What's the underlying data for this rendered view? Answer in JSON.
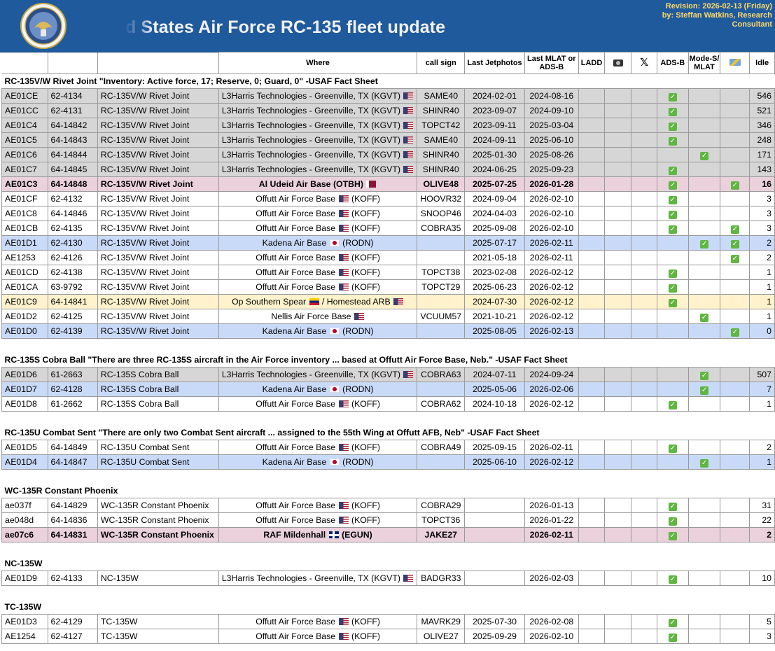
{
  "header": {
    "title": "ed States Air Force RC-135 fleet update",
    "revision_line1": "Revision: 2026-02-13 (Friday)",
    "revision_line2": "by: Steffan Watkins, Research",
    "revision_line3": "Consultant"
  },
  "columns": {
    "where": "Where",
    "callsign": "call sign",
    "jetphotos": "Last Jetphotos",
    "mlat_l1": "Last MLAT or",
    "mlat_l2": "ADS-B",
    "ladd": "LADD",
    "camera_icon": "camera-icon",
    "x_icon": "𝕏",
    "adsb": "ADS-B",
    "modes_l1": "Mode-S/",
    "modes_l2": "MLAT",
    "sat_icon": "satellite-icon",
    "idle": "Idle"
  },
  "sections": [
    {
      "title": "RC-135V/W Rivet Joint \"Inventory: Active force, 17; Reserve, 0; Guard, 0\" -USAF Fact Sheet",
      "rows": [
        {
          "hex": "AE01CE",
          "serial": "62-4134",
          "type": "RC-135V/W Rivet Joint",
          "where": "L3Harris Technologies - Greenville, TX (KGVT)",
          "flag": "us",
          "align": "left",
          "callsign": "SAME40",
          "jet": "2024-02-01",
          "mlat": "2024-08-16",
          "adsb": true,
          "modes": false,
          "sat": false,
          "idle": "546",
          "style": "gray"
        },
        {
          "hex": "AE01CC",
          "serial": "62-4131",
          "type": "RC-135V/W Rivet Joint",
          "where": "L3Harris Technologies - Greenville, TX (KGVT)",
          "flag": "us",
          "align": "left",
          "callsign": "SHINR40",
          "jet": "2023-09-07",
          "mlat": "2024-09-10",
          "adsb": true,
          "modes": false,
          "sat": false,
          "idle": "521",
          "style": "gray"
        },
        {
          "hex": "AE01C4",
          "serial": "64-14842",
          "type": "RC-135V/W Rivet Joint",
          "where": "L3Harris Technologies - Greenville, TX (KGVT)",
          "flag": "us",
          "align": "left",
          "callsign": "TOPCT42",
          "jet": "2023-09-11",
          "mlat": "2025-03-04",
          "adsb": true,
          "modes": false,
          "sat": false,
          "idle": "346",
          "style": "gray"
        },
        {
          "hex": "AE01C5",
          "serial": "64-14843",
          "type": "RC-135V/W Rivet Joint",
          "where": "L3Harris Technologies - Greenville, TX (KGVT)",
          "flag": "us",
          "align": "left",
          "callsign": "SAME40",
          "jet": "2024-09-11",
          "mlat": "2025-06-10",
          "adsb": true,
          "modes": false,
          "sat": false,
          "idle": "248",
          "style": "gray"
        },
        {
          "hex": "AE01C6",
          "serial": "64-14844",
          "type": "RC-135V/W Rivet Joint",
          "where": "L3Harris Technologies - Greenville, TX (KGVT)",
          "flag": "us",
          "align": "left",
          "callsign": "SHINR40",
          "jet": "2025-01-30",
          "mlat": "2025-08-26",
          "adsb": false,
          "modes": true,
          "sat": false,
          "idle": "171",
          "style": "gray"
        },
        {
          "hex": "AE01C7",
          "serial": "64-14845",
          "type": "RC-135V/W Rivet Joint",
          "where": "L3Harris Technologies - Greenville, TX (KGVT)",
          "flag": "us",
          "align": "left",
          "callsign": "SHINR40",
          "jet": "2024-06-25",
          "mlat": "2025-09-23",
          "adsb": true,
          "modes": false,
          "sat": false,
          "idle": "143",
          "style": "gray"
        },
        {
          "hex": "AE01C3",
          "serial": "64-14848",
          "type": "RC-135V/W Rivet Joint",
          "where": "Al Udeid Air Base (OTBH)",
          "flag": "qa",
          "align": "center",
          "callsign": "OLIVE48",
          "jet": "2025-07-25",
          "mlat": "2026-01-28",
          "adsb": true,
          "modes": false,
          "sat": true,
          "idle": "16",
          "style": "pink"
        },
        {
          "hex": "AE01CF",
          "serial": "62-4132",
          "type": "RC-135V/W Rivet Joint",
          "where": "Offutt Air Force Base",
          "flag": "us",
          "suffix": "(KOFF)",
          "align": "center",
          "callsign": "HOOVR32",
          "jet": "2024-09-04",
          "mlat": "2026-02-10",
          "adsb": true,
          "modes": false,
          "sat": false,
          "idle": "3",
          "style": ""
        },
        {
          "hex": "AE01C8",
          "serial": "64-14846",
          "type": "RC-135V/W Rivet Joint",
          "where": "Offutt Air Force Base",
          "flag": "us",
          "suffix": "(KOFF)",
          "align": "center",
          "callsign": "SNOOP46",
          "jet": "2024-04-03",
          "mlat": "2026-02-10",
          "adsb": true,
          "modes": false,
          "sat": false,
          "idle": "3",
          "style": ""
        },
        {
          "hex": "AE01CB",
          "serial": "62-4135",
          "type": "RC-135V/W Rivet Joint",
          "where": "Offutt Air Force Base",
          "flag": "us",
          "suffix": "(KOFF)",
          "align": "center",
          "callsign": "COBRA35",
          "jet": "2025-09-08",
          "mlat": "2026-02-10",
          "adsb": true,
          "modes": false,
          "sat": true,
          "idle": "3",
          "style": ""
        },
        {
          "hex": "AE01D1",
          "serial": "62-4130",
          "type": "RC-135V/W Rivet Joint",
          "where": "Kadena Air Base",
          "flag": "jp",
          "suffix": "(RODN)",
          "align": "center",
          "callsign": "",
          "jet": "2025-07-17",
          "mlat": "2026-02-11",
          "adsb": false,
          "modes": true,
          "sat": true,
          "idle": "2",
          "style": "blue"
        },
        {
          "hex": "AE1253",
          "serial": "62-4126",
          "type": "RC-135V/W Rivet Joint",
          "where": "Offutt Air Force Base",
          "flag": "us",
          "suffix": "(KOFF)",
          "align": "center",
          "callsign": "",
          "jet": "2021-05-18",
          "mlat": "2026-02-11",
          "adsb": false,
          "modes": false,
          "sat": true,
          "idle": "2",
          "style": ""
        },
        {
          "hex": "AE01CD",
          "serial": "62-4138",
          "type": "RC-135V/W Rivet Joint",
          "where": "Offutt Air Force Base",
          "flag": "us",
          "suffix": "(KOFF)",
          "align": "center",
          "callsign": "TOPCT38",
          "jet": "2023-02-08",
          "mlat": "2026-02-12",
          "adsb": true,
          "modes": false,
          "sat": false,
          "idle": "1",
          "style": ""
        },
        {
          "hex": "AE01CA",
          "serial": "63-9792",
          "type": "RC-135V/W Rivet Joint",
          "where": "Offutt Air Force Base",
          "flag": "us",
          "suffix": "(KOFF)",
          "align": "center",
          "callsign": "TOPCT29",
          "jet": "2025-06-23",
          "mlat": "2026-02-12",
          "adsb": true,
          "modes": false,
          "sat": false,
          "idle": "1",
          "style": ""
        },
        {
          "hex": "AE01C9",
          "serial": "64-14841",
          "type": "RC-135V/W Rivet Joint",
          "where": "Op Southern Spear",
          "flag": "ve",
          "suffix": "/ Homestead ARB",
          "flag2": "us",
          "align": "center",
          "callsign": "",
          "jet": "2024-07-30",
          "mlat": "2026-02-12",
          "adsb": true,
          "modes": false,
          "sat": false,
          "idle": "1",
          "style": "yellow"
        },
        {
          "hex": "AE01D2",
          "serial": "62-4125",
          "type": "RC-135V/W Rivet Joint",
          "where": "Nellis Air Force Base",
          "flag": "us",
          "align": "center",
          "callsign": "VCUUM57",
          "jet": "2021-10-21",
          "mlat": "2026-02-12",
          "adsb": false,
          "modes": true,
          "sat": false,
          "idle": "1",
          "style": ""
        },
        {
          "hex": "AE01D0",
          "serial": "62-4139",
          "type": "RC-135V/W Rivet Joint",
          "where": "Kadena Air Base",
          "flag": "jp",
          "suffix": "(RODN)",
          "align": "center",
          "callsign": "",
          "jet": "2025-08-05",
          "mlat": "2026-02-13",
          "adsb": false,
          "modes": false,
          "sat": true,
          "idle": "0",
          "style": "blue"
        }
      ]
    },
    {
      "title": "RC-135S Cobra Ball \"There are three RC-135S aircraft in the Air Force inventory ... based at Offutt Air Force Base, Neb.\"  -USAF Fact Sheet",
      "rows": [
        {
          "hex": "AE01D6",
          "serial": "61-2663",
          "type": "RC-135S Cobra Ball",
          "where": "L3Harris Technologies - Greenville, TX (KGVT)",
          "flag": "us",
          "align": "left",
          "callsign": "COBRA63",
          "jet": "2024-07-11",
          "mlat": "2024-09-24",
          "adsb": false,
          "modes": true,
          "sat": false,
          "idle": "507",
          "style": "gray"
        },
        {
          "hex": "AE01D7",
          "serial": "62-4128",
          "type": "RC-135S Cobra Ball",
          "where": "Kadena Air Base",
          "flag": "jp",
          "suffix": "(RODN)",
          "align": "center",
          "callsign": "",
          "jet": "2025-05-06",
          "mlat": "2026-02-06",
          "adsb": false,
          "modes": true,
          "sat": false,
          "idle": "7",
          "style": "blue"
        },
        {
          "hex": "AE01D8",
          "serial": "61-2662",
          "type": "RC-135S Cobra Ball",
          "where": "Offutt Air Force Base",
          "flag": "us",
          "suffix": "(KOFF)",
          "align": "center",
          "callsign": "COBRA62",
          "jet": "2024-10-18",
          "mlat": "2026-02-12",
          "adsb": true,
          "modes": false,
          "sat": false,
          "idle": "1",
          "style": ""
        }
      ]
    },
    {
      "title": "RC-135U Combat Sent \"There are only two Combat Sent aircraft ... assigned to the 55th Wing at Offutt AFB, Neb\"  -USAF Fact Sheet",
      "rows": [
        {
          "hex": "AE01D5",
          "serial": "64-14849",
          "type": "RC-135U Combat Sent",
          "where": "Offutt Air Force Base",
          "flag": "us",
          "suffix": "(KOFF)",
          "align": "center",
          "callsign": "COBRA49",
          "jet": "2025-09-15",
          "mlat": "2026-02-11",
          "adsb": true,
          "modes": false,
          "sat": false,
          "idle": "2",
          "style": ""
        },
        {
          "hex": "AE01D4",
          "serial": "64-14847",
          "type": "RC-135U Combat Sent",
          "where": "Kadena Air Base",
          "flag": "jp",
          "suffix": "(RODN)",
          "align": "center",
          "callsign": "",
          "jet": "2025-06-10",
          "mlat": "2026-02-12",
          "adsb": false,
          "modes": true,
          "sat": false,
          "idle": "1",
          "style": "blue"
        }
      ]
    },
    {
      "title": "WC-135R Constant Phoenix",
      "rows": [
        {
          "hex": "ae037f",
          "serial": "64-14829",
          "type": "WC-135R Constant Phoenix",
          "where": "Offutt Air Force Base",
          "flag": "us",
          "suffix": "(KOFF)",
          "align": "center",
          "callsign": "COBRA29",
          "jet": "",
          "mlat": "2026-01-13",
          "adsb": true,
          "modes": false,
          "sat": false,
          "idle": "31",
          "style": ""
        },
        {
          "hex": "ae048d",
          "serial": "64-14836",
          "type": "WC-135R Constant Phoenix",
          "where": "Offutt Air Force Base",
          "flag": "us",
          "suffix": "(KOFF)",
          "align": "center",
          "callsign": "TOPCT36",
          "jet": "",
          "mlat": "2026-01-22",
          "adsb": true,
          "modes": false,
          "sat": false,
          "idle": "22",
          "style": ""
        },
        {
          "hex": "ae07c6",
          "serial": "64-14831",
          "type": "WC-135R Constant Phoenix",
          "where": "RAF Mildenhall",
          "flag": "gb",
          "suffix": "(EGUN)",
          "align": "center",
          "callsign": "JAKE27",
          "jet": "",
          "mlat": "2026-02-11",
          "adsb": true,
          "modes": false,
          "sat": false,
          "idle": "2",
          "style": "pink"
        }
      ]
    },
    {
      "title": "NC-135W",
      "rows": [
        {
          "hex": "AE01D9",
          "serial": "62-4133",
          "type": "NC-135W",
          "where": "L3Harris Technologies - Greenville, TX (KGVT)",
          "flag": "us",
          "align": "left",
          "callsign": "BADGR33",
          "jet": "",
          "mlat": "2026-02-03",
          "adsb": true,
          "modes": false,
          "sat": false,
          "idle": "10",
          "style": ""
        }
      ]
    },
    {
      "title": "TC-135W",
      "rows": [
        {
          "hex": "AE01D3",
          "serial": "62-4129",
          "type": "TC-135W",
          "where": "Offutt Air Force Base",
          "flag": "us",
          "suffix": "(KOFF)",
          "align": "center",
          "callsign": "MAVRK29",
          "jet": "2025-07-30",
          "mlat": "2026-02-08",
          "adsb": true,
          "modes": false,
          "sat": false,
          "idle": "5",
          "style": ""
        },
        {
          "hex": "AE1254",
          "serial": "62-4127",
          "type": "TC-135W",
          "where": "Offutt Air Force Base",
          "flag": "us",
          "suffix": "(KOFF)",
          "align": "center",
          "callsign": "OLIVE27",
          "jet": "2025-09-29",
          "mlat": "2026-02-10",
          "adsb": true,
          "modes": false,
          "sat": false,
          "idle": "3",
          "style": ""
        }
      ]
    }
  ],
  "colors": {
    "banner": "#1f5a9d",
    "revision": "#ffd966",
    "gray_row": "#d6d6d6",
    "pink_row": "#ead1dc",
    "blue_row": "#c9daf8",
    "yellow_row": "#fff2cc",
    "check": "#5fb641"
  }
}
